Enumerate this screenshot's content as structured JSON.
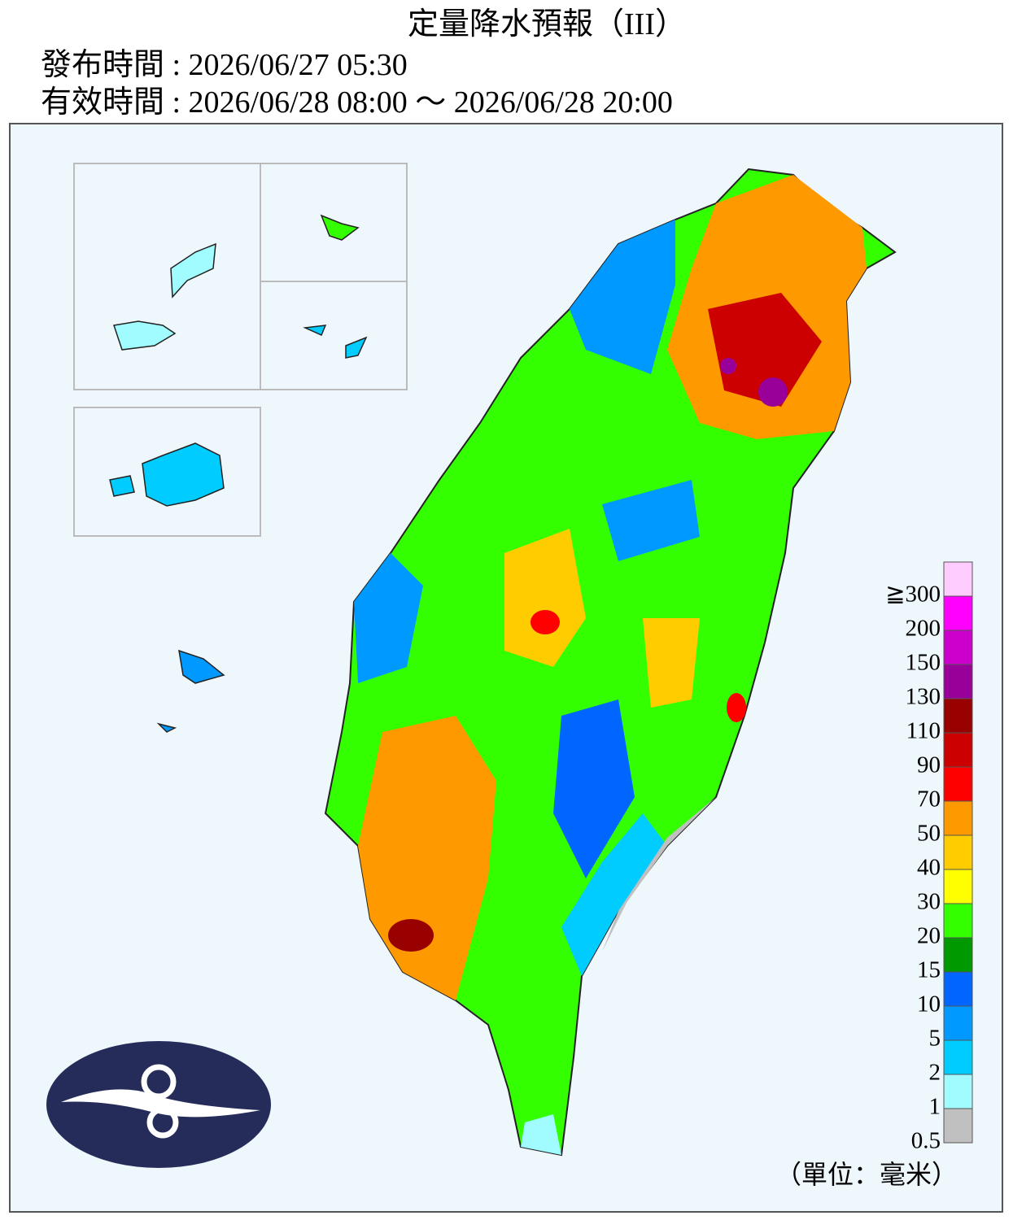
{
  "header": {
    "title": "定量降水預報（III）",
    "issued": "發布時間 : 2026/06/27 05:30",
    "valid": "有效時間 : 2026/06/28 08:00 ～ 2026/06/28 20:00"
  },
  "legend": {
    "items": [
      {
        "label": "0.5",
        "color": "#c0c0c0"
      },
      {
        "label": "1",
        "color": "#a0fcff"
      },
      {
        "label": "2",
        "color": "#00ccff"
      },
      {
        "label": "5",
        "color": "#0099ff"
      },
      {
        "label": "10",
        "color": "#0066ff"
      },
      {
        "label": "15",
        "color": "#009900"
      },
      {
        "label": "20",
        "color": "#33ff00"
      },
      {
        "label": "30",
        "color": "#ffff00"
      },
      {
        "label": "40",
        "color": "#ffcc00"
      },
      {
        "label": "50",
        "color": "#ff9900"
      },
      {
        "label": "70",
        "color": "#ff0000"
      },
      {
        "label": "90",
        "color": "#cc0000"
      },
      {
        "label": "110",
        "color": "#990000"
      },
      {
        "label": "130",
        "color": "#990099"
      },
      {
        "label": "150",
        "color": "#cc00cc"
      },
      {
        "label": "200",
        "color": "#ff00ff"
      },
      {
        "label": "≧300",
        "color": "#ffccff"
      }
    ],
    "unit": "（單位：毫米）"
  }
}
